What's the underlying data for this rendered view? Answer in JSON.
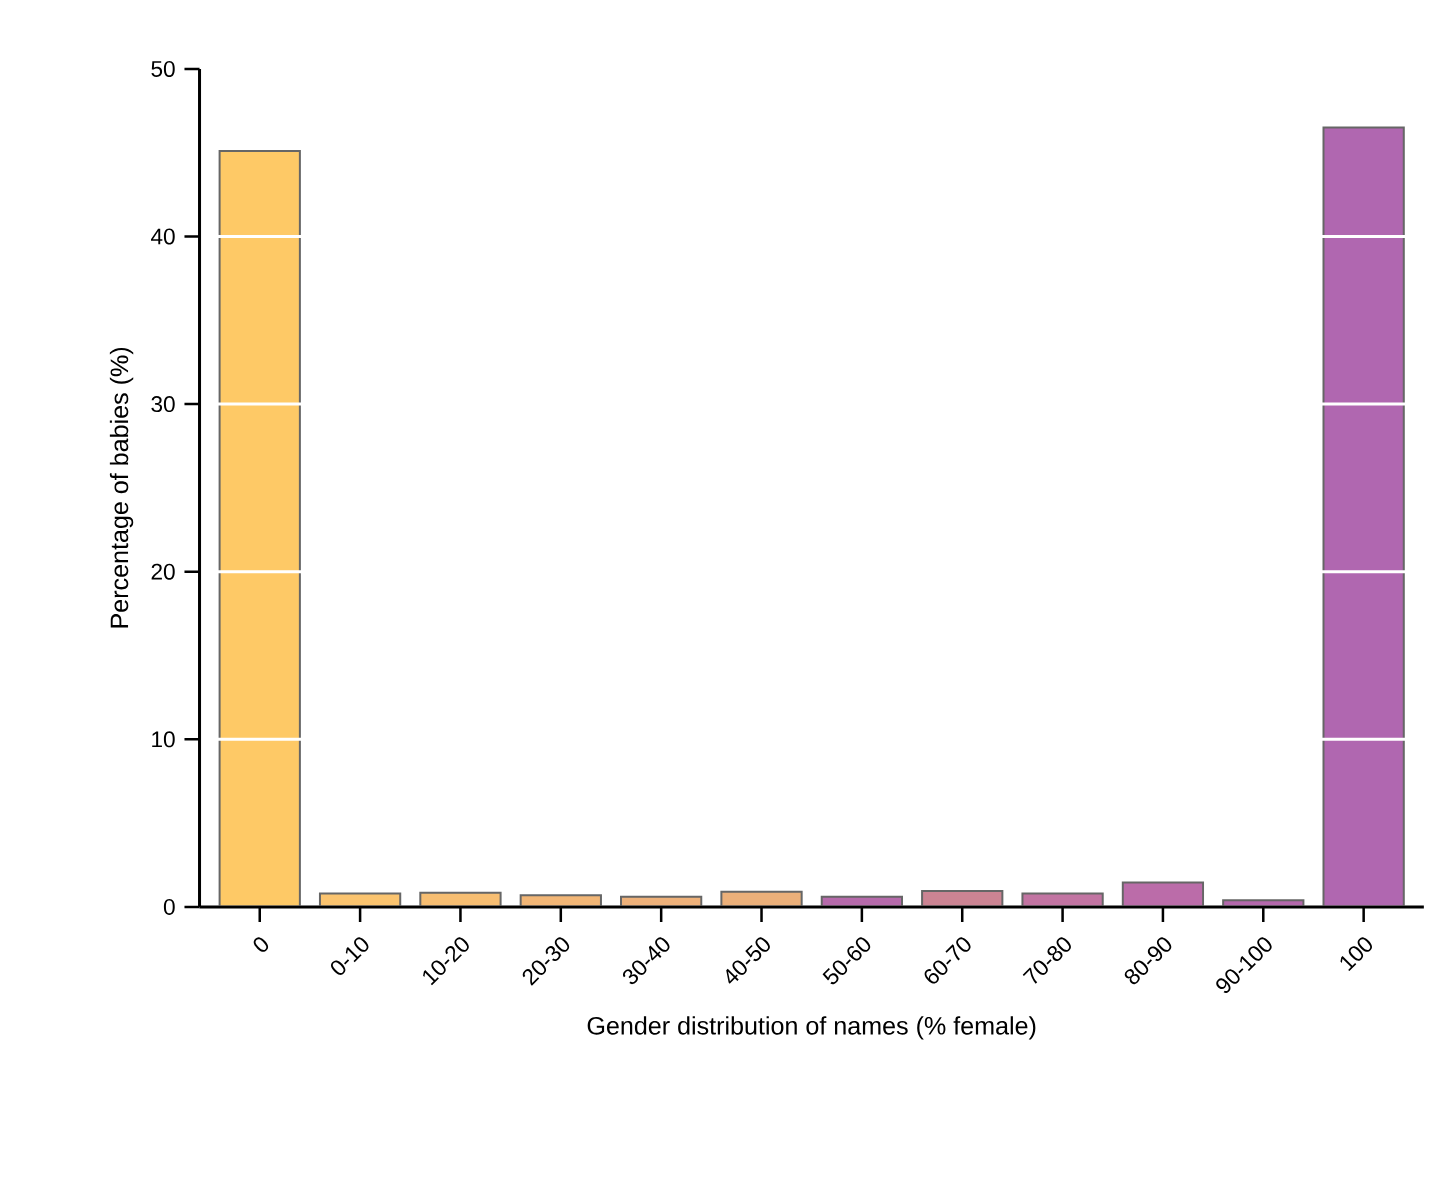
{
  "chart_data": {
    "type": "bar",
    "xlabel": "Gender distribution of names (% female)",
    "ylabel": "Percentage of babies (%)",
    "categories": [
      "0",
      "0-10",
      "10-20",
      "20-30",
      "30-40",
      "40-50",
      "50-60",
      "60-70",
      "70-80",
      "80-90",
      "90-100",
      "100"
    ],
    "values": [
      45.1,
      0.8,
      0.85,
      0.7,
      0.6,
      0.9,
      0.6,
      0.95,
      0.8,
      1.45,
      0.4,
      46.5
    ],
    "colors": [
      "#fec966",
      "#fbc46f",
      "#f7be72",
      "#f2b676",
      "#eeb17a",
      "#ecb07a",
      "#b66aab",
      "#cc8493",
      "#c274a2",
      "#bb6ca9",
      "#b468ac",
      "#b067b0"
    ],
    "ylim": [
      0,
      50
    ],
    "yticks": [
      0,
      10,
      20,
      30,
      40,
      50
    ],
    "grid": "y"
  }
}
